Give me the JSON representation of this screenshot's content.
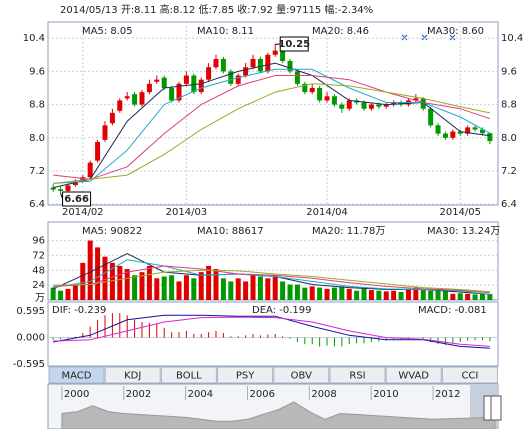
{
  "chart_data": [
    {
      "type": "candlestick",
      "title": "2014/05/13 开:8.11 高:8.12 低:7.85 收:7.92 量:97115 幅:-2.34%",
      "open": [
        6.8,
        6.76,
        6.72,
        6.86,
        6.96,
        7.05,
        7.45,
        7.95,
        8.35,
        8.65,
        8.95,
        9.05,
        8.8,
        9.1,
        9.35,
        9.45,
        9.2,
        8.9,
        9.3,
        9.5,
        9.1,
        9.4,
        9.7,
        9.9,
        9.6,
        9.3,
        9.5,
        9.7,
        9.9,
        9.6,
        10.0,
        10.1,
        9.85,
        9.6,
        9.3,
        9.1,
        9.2,
        8.9,
        9.0,
        8.8,
        8.7,
        8.9,
        8.85,
        8.7,
        8.8,
        8.75,
        8.8,
        8.85,
        8.8,
        8.9,
        8.95,
        8.7,
        8.3,
        8.1,
        8.0,
        8.15,
        8.1,
        8.25,
        8.2,
        8.11
      ],
      "high": [
        6.88,
        6.82,
        6.9,
        7.0,
        7.1,
        7.45,
        7.95,
        8.4,
        8.7,
        8.95,
        9.1,
        9.1,
        9.15,
        9.4,
        9.5,
        9.5,
        9.25,
        9.35,
        9.6,
        9.55,
        9.45,
        9.8,
        10.0,
        9.95,
        9.65,
        9.55,
        9.8,
        10.0,
        9.95,
        10.05,
        10.25,
        10.15,
        9.9,
        9.65,
        9.35,
        9.3,
        9.25,
        9.1,
        9.05,
        8.85,
        8.95,
        8.95,
        8.9,
        8.85,
        8.85,
        8.85,
        8.9,
        8.9,
        8.95,
        9.05,
        8.98,
        8.75,
        8.35,
        8.15,
        8.2,
        8.2,
        8.3,
        8.3,
        8.25,
        8.12
      ],
      "low": [
        6.7,
        6.66,
        6.7,
        6.82,
        6.92,
        7.0,
        7.4,
        7.9,
        8.3,
        8.6,
        8.9,
        8.75,
        8.75,
        9.05,
        9.3,
        9.15,
        8.85,
        8.85,
        9.25,
        9.05,
        9.05,
        9.35,
        9.65,
        9.55,
        9.25,
        9.25,
        9.45,
        9.65,
        9.55,
        9.55,
        9.95,
        9.8,
        9.55,
        9.25,
        9.05,
        9.05,
        8.85,
        8.85,
        8.75,
        8.6,
        8.65,
        8.8,
        8.65,
        8.65,
        8.7,
        8.7,
        8.75,
        8.75,
        8.75,
        8.85,
        8.65,
        8.25,
        8.05,
        7.95,
        7.95,
        8.05,
        8.05,
        8.15,
        8.05,
        7.85
      ],
      "close": [
        6.75,
        6.72,
        6.85,
        6.95,
        7.05,
        7.4,
        7.9,
        8.3,
        8.6,
        8.9,
        9.0,
        8.8,
        9.1,
        9.3,
        9.4,
        9.2,
        8.9,
        9.3,
        9.5,
        9.1,
        9.4,
        9.7,
        9.9,
        9.6,
        9.3,
        9.5,
        9.7,
        9.9,
        9.6,
        10.0,
        10.1,
        9.85,
        9.6,
        9.3,
        9.1,
        9.2,
        8.9,
        9.0,
        8.8,
        8.7,
        8.9,
        8.85,
        8.7,
        8.8,
        8.75,
        8.8,
        8.85,
        8.8,
        8.9,
        8.95,
        8.7,
        8.3,
        8.1,
        8.0,
        8.15,
        8.1,
        8.25,
        8.2,
        8.11,
        7.92
      ],
      "up_color": "#e00000",
      "down_color": "#009900",
      "xlim": [
        -0.7,
        60.1
      ],
      "ylim": [
        6.38,
        10.79
      ],
      "yticks": [
        10.4,
        9.6,
        8.8,
        {
          "value": 8,
          "label": "8.0"
        },
        7.2,
        6.4
      ],
      "xticks": [
        {
          "value": 4,
          "label": "2014/02"
        },
        {
          "value": 18,
          "label": "2014/03"
        },
        {
          "value": 37,
          "label": "2014/04"
        },
        {
          "value": 55,
          "label": "2014/05"
        }
      ],
      "grid": true,
      "max_label": "10.25",
      "min_label": "6.66",
      "series": [
        {
          "name": "MA5: 8.05",
          "color": "#1a2a5a",
          "x": [
            0,
            5,
            10,
            15,
            20,
            25,
            30,
            35,
            40,
            45,
            50,
            55,
            59
          ],
          "values": [
            6.8,
            7.0,
            8.4,
            9.2,
            9.3,
            9.6,
            9.8,
            9.5,
            8.9,
            8.8,
            8.85,
            8.15,
            8.05
          ]
        },
        {
          "name": "MA10: 8.11",
          "color": "#22aacc",
          "x": [
            0,
            5,
            10,
            15,
            20,
            25,
            30,
            35,
            40,
            45,
            50,
            55,
            59
          ],
          "values": [
            6.9,
            6.95,
            7.7,
            8.8,
            9.2,
            9.45,
            9.65,
            9.65,
            9.2,
            8.85,
            8.85,
            8.5,
            8.11
          ]
        },
        {
          "name": "MA20: 8.46",
          "color": "#e0407a",
          "x": [
            0,
            5,
            10,
            15,
            20,
            25,
            30,
            35,
            40,
            45,
            50,
            55,
            59
          ],
          "values": [
            7.1,
            7.0,
            7.3,
            8.1,
            8.8,
            9.25,
            9.5,
            9.5,
            9.4,
            9.1,
            8.85,
            8.7,
            8.46
          ]
        },
        {
          "name": "MA30: 8.60",
          "color": "#9aaa2a",
          "x": [
            0,
            5,
            10,
            15,
            20,
            25,
            30,
            35,
            40,
            45,
            50,
            55,
            59
          ],
          "values": [
            6.9,
            7.0,
            7.1,
            7.6,
            8.2,
            8.7,
            9.1,
            9.3,
            9.25,
            9.1,
            8.95,
            8.75,
            8.6
          ]
        }
      ]
    },
    {
      "type": "bar",
      "unit": "万",
      "values": [
        20,
        15,
        18,
        25,
        60,
        96,
        85,
        70,
        60,
        55,
        50,
        40,
        45,
        55,
        35,
        38,
        40,
        30,
        40,
        35,
        45,
        55,
        50,
        35,
        30,
        35,
        30,
        40,
        38,
        35,
        40,
        30,
        25,
        25,
        20,
        22,
        20,
        18,
        20,
        22,
        18,
        15,
        20,
        16,
        15,
        14,
        15,
        13,
        18,
        20,
        16,
        15,
        18,
        14,
        10,
        11,
        10,
        9,
        10,
        9.7115
      ],
      "ylim": [
        0,
        126
      ],
      "yticks": [
        24,
        48,
        72,
        96
      ],
      "grid": true,
      "series": [
        {
          "name": "MA5: 90822",
          "color": "#1a2a5a",
          "x": [
            0,
            5,
            10,
            15,
            20,
            25,
            30,
            35,
            40,
            45,
            50,
            55,
            59
          ],
          "values": [
            18,
            45,
            75,
            45,
            40,
            42,
            38,
            25,
            20,
            17,
            17,
            13,
            9.08
          ]
        },
        {
          "name": "MA10: 88617",
          "color": "#22aacc",
          "x": [
            0,
            5,
            10,
            15,
            20,
            25,
            30,
            35,
            40,
            45,
            50,
            55,
            59
          ],
          "values": [
            20,
            30,
            65,
            55,
            40,
            42,
            38,
            30,
            22,
            18,
            17,
            15,
            8.86
          ]
        },
        {
          "name": "MA20: 11.78万",
          "color": "#e0407a",
          "x": [
            0,
            5,
            10,
            15,
            20,
            25,
            30,
            35,
            40,
            45,
            50,
            55,
            59
          ],
          "values": [
            22,
            25,
            45,
            55,
            50,
            42,
            40,
            35,
            28,
            22,
            18,
            16,
            11.78
          ]
        },
        {
          "name": "MA30: 13.24万",
          "color": "#9aaa2a",
          "x": [
            0,
            5,
            10,
            15,
            20,
            25,
            30,
            35,
            40,
            45,
            50,
            55,
            59
          ],
          "values": [
            24,
            25,
            35,
            45,
            48,
            47,
            42,
            38,
            32,
            26,
            20,
            17,
            13.24
          ]
        }
      ]
    },
    {
      "type": "macd",
      "name": "MACD: -0.081",
      "values": [
        -0.05,
        -0.04,
        -0.02,
        0.02,
        0.1,
        0.25,
        0.4,
        0.5,
        0.55,
        0.55,
        0.5,
        0.4,
        0.35,
        0.33,
        0.3,
        0.22,
        0.12,
        0.12,
        0.15,
        0.08,
        0.08,
        0.12,
        0.15,
        0.1,
        0.03,
        0.03,
        0.05,
        0.08,
        0.05,
        0.07,
        0.08,
        0.03,
        -0.03,
        -0.1,
        -0.15,
        -0.15,
        -0.2,
        -0.18,
        -0.2,
        -0.2,
        -0.15,
        -0.13,
        -0.13,
        -0.1,
        -0.09,
        -0.07,
        -0.05,
        -0.04,
        -0.02,
        0.0,
        -0.03,
        -0.1,
        -0.15,
        -0.17,
        -0.12,
        -0.1,
        -0.07,
        -0.06,
        -0.06,
        -0.081
      ],
      "ylim": [
        -0.64,
        0.8
      ],
      "yticks": [
        0.595,
        {
          "value": 0,
          "label": "0.000"
        },
        -0.595
      ],
      "series": [
        {
          "name": "DIF: -0.239",
          "color": "#1010a0",
          "x": [
            0,
            5,
            10,
            15,
            20,
            25,
            30,
            35,
            40,
            45,
            50,
            55,
            59
          ],
          "values": [
            -0.1,
            0.05,
            0.4,
            0.5,
            0.5,
            0.48,
            0.48,
            0.25,
            0.05,
            -0.05,
            -0.05,
            -0.2,
            -0.239
          ]
        },
        {
          "name": "DEA: -0.199",
          "color": "#dd22cc",
          "x": [
            0,
            5,
            10,
            15,
            20,
            25,
            30,
            35,
            40,
            45,
            50,
            55,
            59
          ],
          "values": [
            -0.08,
            -0.05,
            0.15,
            0.35,
            0.45,
            0.46,
            0.45,
            0.35,
            0.15,
            0.0,
            -0.04,
            -0.15,
            -0.199
          ]
        }
      ]
    },
    {
      "type": "area",
      "color": "#b8b8b8",
      "x": [
        2000,
        2000.5,
        2001,
        2001.5,
        2002,
        2003,
        2004,
        2004.5,
        2005,
        2005.5,
        2006,
        2007,
        2007.5,
        2008,
        2008.5,
        2009,
        2010,
        2011,
        2012,
        2013,
        2014
      ],
      "values": [
        8,
        9,
        12,
        9,
        8,
        7,
        6,
        5,
        4,
        4,
        5,
        10,
        14,
        9,
        5,
        8,
        7,
        6,
        5,
        5.5,
        6
      ],
      "xlim": [
        1999.55,
        2014.1
      ],
      "ylim": [
        0,
        16
      ],
      "xticks": [
        2000,
        2002,
        2004,
        2006,
        2008,
        2010,
        2012
      ]
    }
  ],
  "tabs": [
    "MACD",
    "KDJ",
    "BOLL",
    "PSY",
    "OBV",
    "RSI",
    "WVAD",
    "CCI"
  ],
  "active_tab": 0
}
